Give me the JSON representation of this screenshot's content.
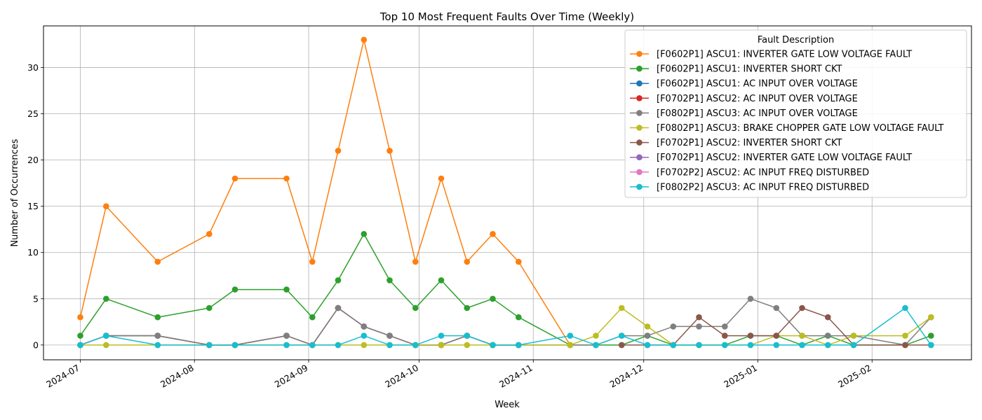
{
  "chart_data": {
    "type": "line",
    "title": "Top 10 Most Frequent Faults Over Time (Weekly)",
    "xlabel": "Week",
    "ylabel": "Number of Occurrences",
    "xlim": [
      "2024-06-21",
      "2025-02-28"
    ],
    "ylim": [
      -1.6,
      34.5
    ],
    "yticks": [
      0,
      5,
      10,
      15,
      20,
      25,
      30
    ],
    "xticks": [
      "2024-07",
      "2024-08",
      "2024-09",
      "2024-10",
      "2024-11",
      "2024-12",
      "2025-01",
      "2025-02"
    ],
    "grid": true,
    "legend": {
      "title": "Fault Description",
      "placement": "top-right"
    },
    "x": [
      "2024-07-01",
      "2024-07-08",
      "2024-07-22",
      "2024-08-05",
      "2024-08-12",
      "2024-08-26",
      "2024-09-02",
      "2024-09-09",
      "2024-09-16",
      "2024-09-23",
      "2024-09-30",
      "2024-10-07",
      "2024-10-14",
      "2024-10-21",
      "2024-10-28",
      "2024-11-11",
      "2024-11-18",
      "2024-11-25",
      "2024-12-02",
      "2024-12-09",
      "2024-12-16",
      "2024-12-23",
      "2024-12-30",
      "2025-01-06",
      "2025-01-13",
      "2025-01-20",
      "2025-01-27",
      "2025-02-10",
      "2025-02-17"
    ],
    "series": [
      {
        "name": "[F0602P1] ASCU1: INVERTER GATE LOW VOLTAGE FAULT",
        "color": "#ff7f0e",
        "x": [
          "2024-07-01",
          "2024-07-08",
          "2024-07-22",
          "2024-08-05",
          "2024-08-12",
          "2024-08-26",
          "2024-09-02",
          "2024-09-09",
          "2024-09-16",
          "2024-09-23",
          "2024-09-30",
          "2024-10-07",
          "2024-10-14",
          "2024-10-21",
          "2024-10-28",
          "2024-11-11"
        ],
        "values": [
          3,
          15,
          9,
          12,
          18,
          18,
          9,
          21,
          33,
          21,
          9,
          18,
          9,
          12,
          9,
          0
        ]
      },
      {
        "name": "[F0602P1] ASCU1: INVERTER SHORT CKT",
        "color": "#2ca02c",
        "x": [
          "2024-07-01",
          "2024-07-08",
          "2024-07-22",
          "2024-08-05",
          "2024-08-12",
          "2024-08-26",
          "2024-09-02",
          "2024-09-09",
          "2024-09-16",
          "2024-09-23",
          "2024-09-30",
          "2024-10-07",
          "2024-10-14",
          "2024-10-21",
          "2024-10-28",
          "2024-11-11",
          "2024-11-18",
          "2024-11-25",
          "2024-12-02",
          "2024-12-09",
          "2024-12-16",
          "2024-12-23",
          "2024-12-30",
          "2025-01-06",
          "2025-01-13",
          "2025-01-20",
          "2025-01-27",
          "2025-02-10",
          "2025-02-17"
        ],
        "values": [
          1,
          5,
          3,
          4,
          6,
          6,
          3,
          7,
          12,
          7,
          4,
          7,
          4,
          5,
          3,
          0,
          0,
          0,
          1,
          0,
          0,
          0,
          1,
          1,
          0,
          1,
          0,
          0,
          1
        ]
      },
      {
        "name": "[F0602P1] ASCU1: AC INPUT OVER VOLTAGE",
        "color": "#1f77b4",
        "x": [
          "2024-07-01",
          "2024-07-08",
          "2024-07-22",
          "2024-08-05",
          "2024-08-12",
          "2024-08-26",
          "2024-09-02",
          "2024-09-09",
          "2024-09-16",
          "2024-09-23",
          "2024-09-30",
          "2024-10-07",
          "2024-10-14",
          "2024-10-21",
          "2024-10-28"
        ],
        "values": [
          0,
          1,
          1,
          0,
          0,
          1,
          0,
          4,
          2,
          1,
          0,
          0,
          1,
          0,
          0
        ]
      },
      {
        "name": "[F0702P1] ASCU2: AC INPUT OVER VOLTAGE",
        "color": "#d62728",
        "x": [
          "2024-07-01",
          "2024-07-08",
          "2024-07-22",
          "2024-08-05",
          "2024-08-12",
          "2024-08-26",
          "2024-09-02",
          "2024-09-09",
          "2024-09-16",
          "2024-09-23",
          "2024-09-30",
          "2024-10-07",
          "2024-10-14",
          "2024-10-21",
          "2024-10-28"
        ],
        "values": [
          0,
          1,
          1,
          0,
          0,
          1,
          0,
          4,
          2,
          1,
          0,
          0,
          1,
          0,
          0
        ]
      },
      {
        "name": "[F0802P1] ASCU3: AC INPUT OVER VOLTAGE",
        "color": "#7f7f7f",
        "x": [
          "2024-07-01",
          "2024-07-08",
          "2024-07-22",
          "2024-08-05",
          "2024-08-12",
          "2024-08-26",
          "2024-09-02",
          "2024-09-09",
          "2024-09-16",
          "2024-09-23",
          "2024-09-30",
          "2024-10-07",
          "2024-10-14",
          "2024-10-21",
          "2024-10-28",
          "2024-11-11",
          "2024-11-18",
          "2024-11-25",
          "2024-12-02",
          "2024-12-09",
          "2024-12-16",
          "2024-12-23",
          "2024-12-30",
          "2025-01-06",
          "2025-01-13",
          "2025-01-20",
          "2025-01-27",
          "2025-02-10",
          "2025-02-17"
        ],
        "values": [
          0,
          1,
          1,
          0,
          0,
          1,
          0,
          4,
          2,
          1,
          0,
          0,
          1,
          0,
          0,
          0,
          0,
          1,
          1,
          2,
          2,
          2,
          5,
          4,
          1,
          1,
          1,
          0,
          3
        ]
      },
      {
        "name": "[F0802P1] ASCU3: BRAKE CHOPPER GATE LOW VOLTAGE FAULT",
        "color": "#bcbd22",
        "x": [
          "2024-07-01",
          "2024-07-08",
          "2024-07-22",
          "2024-08-05",
          "2024-08-12",
          "2024-08-26",
          "2024-09-02",
          "2024-09-09",
          "2024-09-16",
          "2024-09-23",
          "2024-09-30",
          "2024-10-07",
          "2024-10-14",
          "2024-10-21",
          "2024-10-28",
          "2024-11-11",
          "2024-11-18",
          "2024-11-25",
          "2024-12-02",
          "2024-12-09",
          "2024-12-16",
          "2024-12-23",
          "2024-12-30",
          "2025-01-06",
          "2025-01-13",
          "2025-01-20",
          "2025-01-27",
          "2025-02-10",
          "2025-02-17"
        ],
        "values": [
          0,
          0,
          0,
          0,
          0,
          0,
          0,
          0,
          0,
          0,
          0,
          0,
          0,
          0,
          0,
          0,
          1,
          4,
          2,
          0,
          0,
          0,
          0,
          1,
          1,
          0,
          1,
          1,
          3
        ]
      },
      {
        "name": "[F0702P1] ASCU2: INVERTER SHORT CKT",
        "color": "#8c564b",
        "x": [
          "2024-11-25",
          "2024-12-02",
          "2024-12-09",
          "2024-12-16",
          "2024-12-23",
          "2024-12-30",
          "2025-01-06",
          "2025-01-13",
          "2025-01-20",
          "2025-01-27",
          "2025-02-10",
          "2025-02-17"
        ],
        "values": [
          0,
          0,
          0,
          3,
          1,
          1,
          1,
          4,
          3,
          0,
          0,
          0
        ]
      },
      {
        "name": "[F0702P1] ASCU2: INVERTER GATE LOW VOLTAGE FAULT",
        "color": "#9467bd",
        "x": [],
        "values": []
      },
      {
        "name": "[F0702P2] ASCU2: AC INPUT FREQ DISTURBED",
        "color": "#e377c2",
        "x": [],
        "values": []
      },
      {
        "name": "[F0802P2] ASCU3: AC INPUT FREQ DISTURBED",
        "color": "#17becf",
        "x": [
          "2024-07-01",
          "2024-07-08",
          "2024-07-22",
          "2024-08-05",
          "2024-08-12",
          "2024-08-26",
          "2024-09-02",
          "2024-09-09",
          "2024-09-16",
          "2024-09-23",
          "2024-09-30",
          "2024-10-07",
          "2024-10-14",
          "2024-10-21",
          "2024-10-28",
          "2024-11-11",
          "2024-11-18",
          "2024-11-25",
          "2024-12-02",
          "2024-12-09",
          "2024-12-16",
          "2024-12-23",
          "2024-12-30",
          "2025-01-06",
          "2025-01-13",
          "2025-01-20",
          "2025-01-27",
          "2025-02-10",
          "2025-02-17"
        ],
        "values": [
          0,
          1,
          0,
          0,
          0,
          0,
          0,
          0,
          1,
          0,
          0,
          1,
          1,
          0,
          0,
          1,
          0,
          1,
          0,
          0,
          0,
          0,
          0,
          0,
          0,
          0,
          0,
          4,
          0
        ]
      }
    ]
  }
}
